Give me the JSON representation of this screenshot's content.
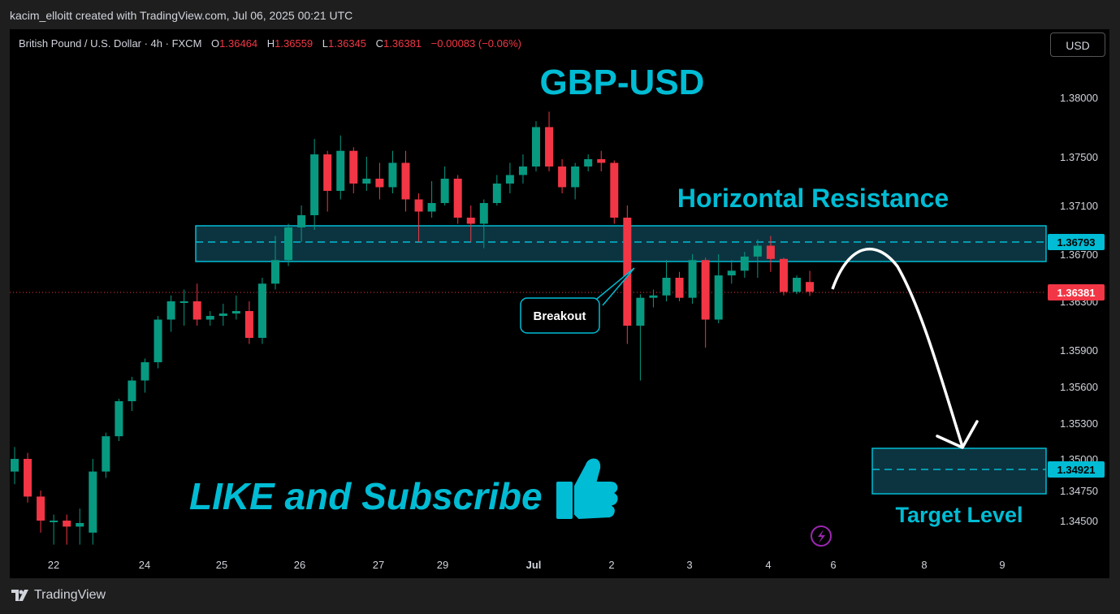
{
  "credit": "kacim_elloitt created with TradingView.com, Jul 06, 2025 00:21 UTC",
  "brand": "TradingView",
  "legend": {
    "symbol": "British Pound / U.S. Dollar · 4h · FXCM",
    "o_label": "O",
    "o_value": "1.36464",
    "h_label": "H",
    "h_value": "1.36559",
    "l_label": "L",
    "l_value": "1.36345",
    "c_label": "C",
    "c_value": "1.36381",
    "change": "−0.00083 (−0.06%)"
  },
  "currency_button": "USD",
  "colors": {
    "bull": "#089981",
    "bear": "#f23645",
    "accent": "#00bcd4",
    "zone_fill": "#0c3440",
    "background": "#000000"
  },
  "chart_data": {
    "type": "candlestick",
    "title": "GBP-USD",
    "y_axis_ticks": [
      "1.38000",
      "1.37500",
      "1.37100",
      "1.36700",
      "1.36300",
      "1.35900",
      "1.35600",
      "1.35300",
      "1.35000",
      "1.34750",
      "1.34500"
    ],
    "x_axis_ticks": [
      "22",
      "24",
      "25",
      "26",
      "27",
      "29",
      "Jul",
      "2",
      "3",
      "4",
      "6",
      "8",
      "9"
    ],
    "last_price": "1.36381",
    "resistance_level": "1.36793",
    "target_price": "1.34921",
    "candles": [
      [
        1.349,
        1.35,
        1.348,
        1.351
      ],
      [
        1.35,
        1.347,
        1.3465,
        1.3505
      ],
      [
        1.347,
        1.345,
        1.344,
        1.3475
      ],
      [
        1.345,
        1.345,
        1.343,
        1.3455
      ],
      [
        1.345,
        1.3445,
        1.343,
        1.3455
      ],
      [
        1.3445,
        1.3448,
        1.343,
        1.346
      ],
      [
        1.344,
        1.349,
        1.343,
        1.35
      ],
      [
        1.349,
        1.3519,
        1.3485,
        1.3522
      ],
      [
        1.3519,
        1.3548,
        1.3515,
        1.355
      ],
      [
        1.3548,
        1.3565,
        1.354,
        1.3568
      ],
      [
        1.3565,
        1.358,
        1.3555,
        1.3583
      ],
      [
        1.358,
        1.3615,
        1.3575,
        1.3618
      ],
      [
        1.3615,
        1.363,
        1.3605,
        1.3635
      ],
      [
        1.363,
        1.363,
        1.361,
        1.364
      ],
      [
        1.363,
        1.3615,
        1.361,
        1.3645
      ],
      [
        1.3615,
        1.3618,
        1.361,
        1.3622
      ],
      [
        1.3618,
        1.362,
        1.361,
        1.3628
      ],
      [
        1.362,
        1.3622,
        1.3615,
        1.3635
      ],
      [
        1.3622,
        1.36,
        1.3595,
        1.363
      ],
      [
        1.36,
        1.3645,
        1.3595,
        1.365
      ],
      [
        1.3645,
        1.3665,
        1.364,
        1.3685
      ],
      [
        1.3665,
        1.3692,
        1.366,
        1.3695
      ],
      [
        1.3692,
        1.3702,
        1.368,
        1.371
      ],
      [
        1.3702,
        1.3752,
        1.369,
        1.3765
      ],
      [
        1.3752,
        1.3722,
        1.3705,
        1.3755
      ],
      [
        1.3722,
        1.3755,
        1.3715,
        1.3768
      ],
      [
        1.3755,
        1.3728,
        1.372,
        1.3758
      ],
      [
        1.3728,
        1.3732,
        1.3722,
        1.375
      ],
      [
        1.3732,
        1.3725,
        1.3715,
        1.3745
      ],
      [
        1.3725,
        1.3745,
        1.372,
        1.3755
      ],
      [
        1.3745,
        1.3715,
        1.3705,
        1.3755
      ],
      [
        1.3715,
        1.3705,
        1.368,
        1.372
      ],
      [
        1.3705,
        1.3712,
        1.37,
        1.373
      ],
      [
        1.3712,
        1.3732,
        1.371,
        1.3742
      ],
      [
        1.3732,
        1.37,
        1.3695,
        1.3735
      ],
      [
        1.37,
        1.3695,
        1.368,
        1.371
      ],
      [
        1.3695,
        1.3712,
        1.3675,
        1.3715
      ],
      [
        1.3712,
        1.3728,
        1.371,
        1.3735
      ],
      [
        1.3728,
        1.3735,
        1.372,
        1.3745
      ],
      [
        1.3735,
        1.3742,
        1.3728,
        1.3752
      ],
      [
        1.3742,
        1.3775,
        1.3738,
        1.378
      ],
      [
        1.3775,
        1.3742,
        1.3738,
        1.3788
      ],
      [
        1.3742,
        1.3725,
        1.372,
        1.3748
      ],
      [
        1.3725,
        1.3742,
        1.3715,
        1.3745
      ],
      [
        1.3742,
        1.3748,
        1.3738,
        1.3752
      ],
      [
        1.3748,
        1.3745,
        1.3738,
        1.3755
      ],
      [
        1.3745,
        1.37,
        1.3695,
        1.3747
      ],
      [
        1.37,
        1.361,
        1.3595,
        1.371
      ],
      [
        1.361,
        1.3633,
        1.3565,
        1.3636
      ],
      [
        1.3633,
        1.3635,
        1.3625,
        1.364
      ],
      [
        1.3635,
        1.365,
        1.363,
        1.3665
      ],
      [
        1.365,
        1.3633,
        1.363,
        1.3655
      ],
      [
        1.3633,
        1.3665,
        1.3628,
        1.367
      ],
      [
        1.3665,
        1.3615,
        1.3592,
        1.3667
      ],
      [
        1.3615,
        1.3652,
        1.3612,
        1.367
      ],
      [
        1.3652,
        1.3656,
        1.3645,
        1.3665
      ],
      [
        1.3656,
        1.3668,
        1.365,
        1.3672
      ],
      [
        1.3668,
        1.3677,
        1.365,
        1.3682
      ],
      [
        1.3677,
        1.3666,
        1.3655,
        1.3685
      ],
      [
        1.3666,
        1.3638,
        1.3635,
        1.3667
      ],
      [
        1.3638,
        1.365,
        1.3636,
        1.3652
      ],
      [
        1.36464,
        1.36381,
        1.36345,
        1.36559
      ]
    ],
    "annotations": {
      "resistance_label": "Horizontal Resistance",
      "breakout_label": "Breakout",
      "target_label": "Target Level",
      "cta_text": "LIKE and Subscribe"
    }
  }
}
